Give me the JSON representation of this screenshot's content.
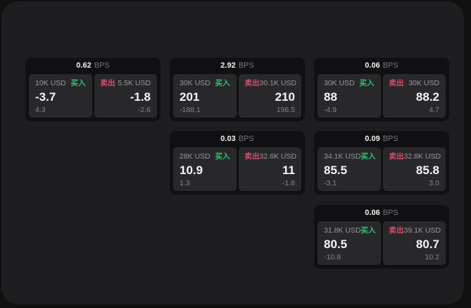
{
  "labels": {
    "buy": "买入",
    "sell": "卖出",
    "bps": "BPS"
  },
  "colors": {
    "buy_green": "#2fc46e",
    "sell_red": "#de4a64",
    "window_bg": "#1d1d1f",
    "card_bg": "#101012",
    "tile_bg": "#28282b"
  },
  "cards": [
    {
      "spread_bps": "0.62",
      "buy": {
        "amount": "10K USD",
        "price": "-3.7",
        "delta": "4.3"
      },
      "sell": {
        "amount": "5.5K USD",
        "price": "-1.8",
        "delta": "-2.6"
      }
    },
    {
      "spread_bps": "2.92",
      "buy": {
        "amount": "30K USD",
        "price": "201",
        "delta": "-188.1"
      },
      "sell": {
        "amount": "30.1K USD",
        "price": "210",
        "delta": "196.5"
      }
    },
    {
      "spread_bps": "0.06",
      "buy": {
        "amount": "30K USD",
        "price": "88",
        "delta": "-4.9"
      },
      "sell": {
        "amount": "30K USD",
        "price": "88.2",
        "delta": "4.7"
      }
    },
    {
      "spread_bps": "0.03",
      "buy": {
        "amount": "28K USD",
        "price": "10.9",
        "delta": "1.3"
      },
      "sell": {
        "amount": "32.6K USD",
        "price": "11",
        "delta": "-1.8"
      }
    },
    {
      "spread_bps": "0.09",
      "buy": {
        "amount": "34.1K USD",
        "price": "85.5",
        "delta": "-3.1"
      },
      "sell": {
        "amount": "32.8K USD",
        "price": "85.8",
        "delta": "3.0"
      }
    },
    {
      "spread_bps": "0.06",
      "buy": {
        "amount": "31.8K USD",
        "price": "80.5",
        "delta": "-10.8"
      },
      "sell": {
        "amount": "39.1K USD",
        "price": "80.7",
        "delta": "10.2"
      }
    }
  ]
}
